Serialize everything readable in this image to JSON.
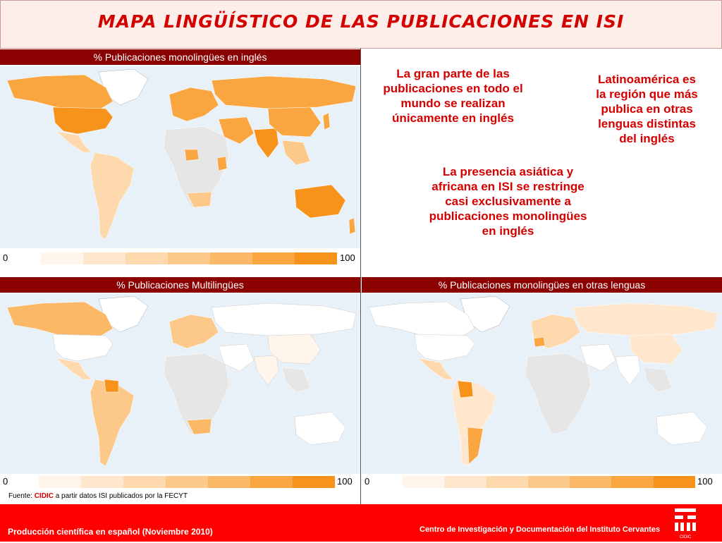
{
  "title": "MAPA LINGÜÍSTICO DE LAS PUBLICACIONES EN ISI",
  "panels": {
    "english": {
      "label": "% Publicaciones monolingües en inglés"
    },
    "multi": {
      "label": "% Publicaciones Multilingües"
    },
    "other": {
      "label": "% Publicaciones monolingües en otras lenguas"
    }
  },
  "legend": {
    "min": "0",
    "max": "100",
    "colors": [
      "#fff5ea",
      "#fee7cd",
      "#fdd9ad",
      "#fcc98b",
      "#fbb866",
      "#f9a640",
      "#f7931a"
    ]
  },
  "notes": {
    "n1": "La gran parte de las publicaciones en todo el mundo se realizan únicamente en inglés",
    "n2": "Latinoamérica es la región que más publica en otras lenguas distintas del inglés",
    "n3": "La presencia asiática y africana en ISI se restringe casi exclusivamente a publicaciones monolingües en inglés"
  },
  "source": {
    "prefix": "Fuente:",
    "org": "CIDIC",
    "rest": "a partir datos ISI publicados por la FECYT"
  },
  "footer": {
    "left": "Producción científica en español (Noviembre 2010)",
    "right": "Centro de Investigación y Documentación del Instituto Cervantes"
  },
  "logo_text": "CIDIC",
  "colors": {
    "accent_red": "#d40000",
    "header_dark_red": "#8b0000",
    "footer_red": "#ff0000",
    "ocean": "#e9f1f8"
  }
}
